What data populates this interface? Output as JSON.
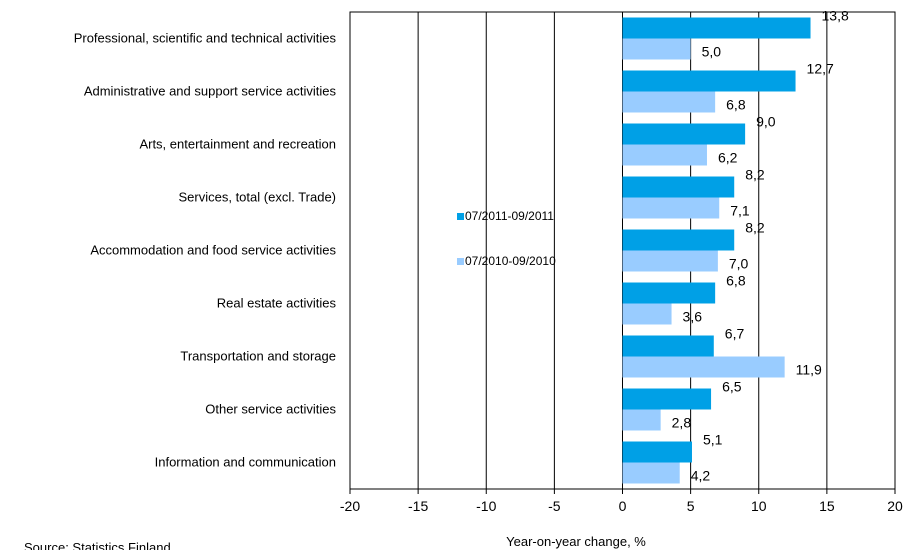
{
  "chart_data": {
    "type": "bar",
    "orientation": "horizontal",
    "categories": [
      "Professional, scientific and technical activities",
      "Administrative and support service activities",
      "Arts, entertainment and recreation",
      "Services, total (excl. Trade)",
      "Accommodation and food service activities",
      "Real estate activities",
      "Transportation and storage",
      "Other service activities",
      "Information and communication"
    ],
    "series": [
      {
        "name": "07/2011-09/2011",
        "color": "#00a0e6",
        "values": [
          13.8,
          12.7,
          9.0,
          8.2,
          8.2,
          6.8,
          6.7,
          6.5,
          5.1
        ],
        "labels": [
          "13,8",
          "12,7",
          "9,0",
          "8,2",
          "8,2",
          "6,8",
          "6,7",
          "6,5",
          "5,1"
        ]
      },
      {
        "name": "07/2010-09/2010",
        "color": "#99ccff",
        "values": [
          5.0,
          6.8,
          6.2,
          7.1,
          7.0,
          3.6,
          11.9,
          2.8,
          4.2
        ],
        "labels": [
          "5,0",
          "6,8",
          "6,2",
          "7,1",
          "7,0",
          "3,6",
          "11,9",
          "2,8",
          "4,2"
        ]
      }
    ],
    "xlim": [
      -20,
      20
    ],
    "xticks": [
      -20,
      -15,
      -10,
      -5,
      0,
      5,
      10,
      15,
      20
    ],
    "xtick_labels": [
      "-20",
      "-15",
      "-10",
      "-5",
      "0",
      "5",
      "10",
      "15",
      "20"
    ],
    "xlabel": "Year-on-year change, %",
    "grid": "vertical lines at major ticks",
    "legend_position": "left-center"
  },
  "source": "Source: Statistics Finland"
}
